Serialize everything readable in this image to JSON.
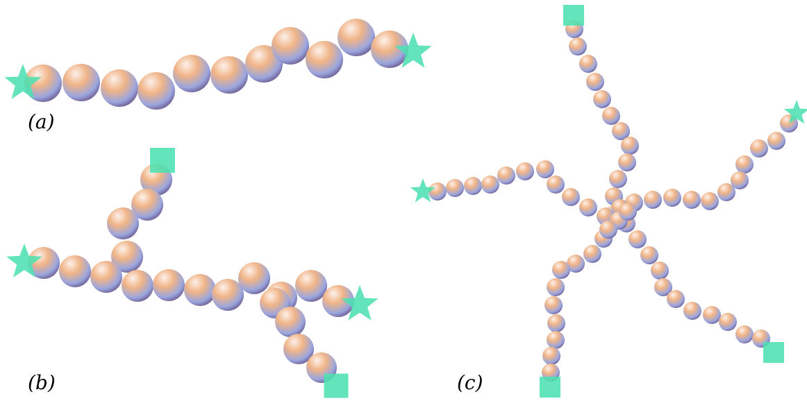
{
  "colors": {
    "marker": "#4fe0b0",
    "bead_light": "#fdf1ea",
    "bead_warm": "#f0b487",
    "bead_cool": "#9aa6df",
    "bead_dark": "#6c5a8e"
  },
  "panels": {
    "a": {
      "label": "(a)",
      "shape": "linear-chain",
      "end_markers": [
        "star",
        "star"
      ]
    },
    "b": {
      "label": "(b)",
      "shape": "branched-chain",
      "end_markers": [
        "star",
        "star",
        "square",
        "square"
      ]
    },
    "c": {
      "label": "(c)",
      "shape": "star-polymer",
      "end_markers": [
        "star",
        "star",
        "square",
        "square",
        "square"
      ]
    }
  }
}
